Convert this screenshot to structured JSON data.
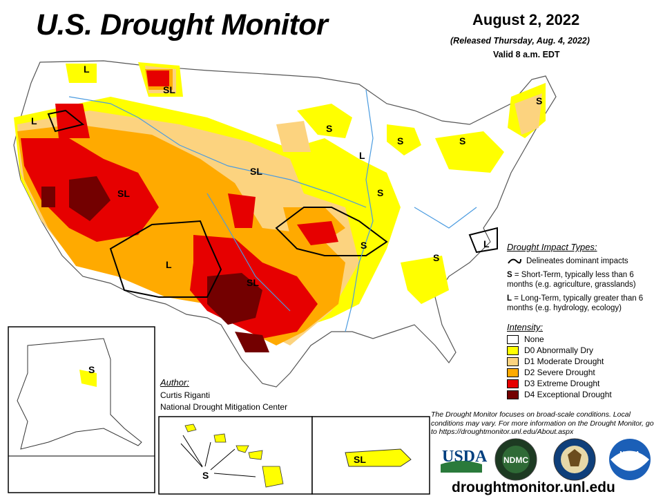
{
  "header": {
    "title": "U.S. Drought Monitor",
    "date": "August 2, 2022",
    "released": "(Released Thursday, Aug. 4, 2022)",
    "valid": "Valid 8 a.m. EDT"
  },
  "impact_types": {
    "heading": "Drought Impact Types:",
    "delineates": "Delineates dominant impacts",
    "short_term_key": "S",
    "short_term_text": "= Short-Term, typically less than 6 months (e.g. agriculture, grasslands)",
    "long_term_key": "L",
    "long_term_text": "= Long-Term, typically greater than 6 months (e.g. hydrology, ecology)"
  },
  "intensity": {
    "heading": "Intensity:",
    "levels": [
      {
        "label": "None",
        "color": "#ffffff"
      },
      {
        "label": "D0 Abnormally Dry",
        "color": "#ffff00"
      },
      {
        "label": "D1 Moderate Drought",
        "color": "#fcd37f"
      },
      {
        "label": "D2 Severe Drought",
        "color": "#ffaa00"
      },
      {
        "label": "D3 Extreme Drought",
        "color": "#e60000"
      },
      {
        "label": "D4 Exceptional Drought",
        "color": "#730000"
      }
    ]
  },
  "author": {
    "heading": "Author:",
    "name": "Curtis Riganti",
    "organization": "National Drought Mitigation Center"
  },
  "disclaimer": "The Drought Monitor focuses on broad-scale conditions. Local conditions may vary. For more information on the Drought Monitor, go to https://droughtmonitor.unl.edu/About.aspx",
  "footer_url": "droughtmonitor.unl.edu",
  "map_labels": {
    "sl_montana": "SL",
    "l_idaho": "L",
    "l_oregon": "L",
    "sl_nevada": "SL",
    "sl_nebraska": "SL",
    "s_wisconsin": "S",
    "l_illinois": "L",
    "s_michigan": "S",
    "s_iowa": "S",
    "s_newyork": "S",
    "s_maine": "S",
    "l_arizona": "L",
    "sl_texas": "SL",
    "s_arkansas": "S",
    "l_northcarolina": "L",
    "s_georgia": "S",
    "s_alaska": "S",
    "s_hawaii": "S",
    "sl_puertorico": "SL"
  },
  "logos": {
    "usda": "USDA",
    "ndmc": "NDMC",
    "noaa": "NOAA"
  }
}
